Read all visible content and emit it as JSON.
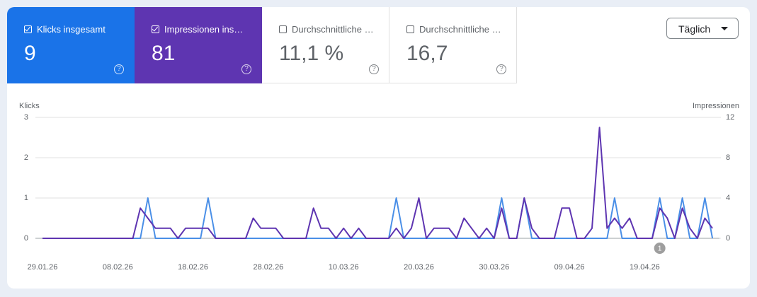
{
  "cards": [
    {
      "label": "Klicks insgesamt",
      "value": "9",
      "checked": true,
      "color": "#1a73e8"
    },
    {
      "label": "Impressionen ins…",
      "value": "81",
      "checked": true,
      "color": "#5e35b1"
    },
    {
      "label": "Durchschnittliche …",
      "value": "11,1 %",
      "checked": false,
      "color": "#ffffff"
    },
    {
      "label": "Durchschnittliche …",
      "value": "16,7",
      "checked": false,
      "color": "#ffffff"
    }
  ],
  "dropdown": "Täglich",
  "chart_data": {
    "type": "line",
    "ylabel": "Klicks",
    "y2label": "Impressionen",
    "categories": [
      "29.01.26",
      null,
      null,
      null,
      null,
      null,
      null,
      null,
      null,
      null,
      "08.02.26",
      null,
      null,
      null,
      null,
      null,
      null,
      null,
      null,
      null,
      "18.02.26",
      null,
      null,
      null,
      null,
      null,
      null,
      null,
      null,
      null,
      "28.02.26",
      null,
      null,
      null,
      null,
      null,
      null,
      null,
      null,
      null,
      "10.03.26",
      null,
      null,
      null,
      null,
      null,
      null,
      null,
      null,
      null,
      "20.03.26",
      null,
      null,
      null,
      null,
      null,
      null,
      null,
      null,
      null,
      "30.03.26",
      null,
      null,
      null,
      null,
      null,
      null,
      null,
      null,
      null,
      "09.04.26",
      null,
      null,
      null,
      null,
      null,
      null,
      null,
      null,
      null,
      "19.04.26",
      null,
      null,
      null,
      null,
      null,
      null,
      null,
      null,
      null
    ],
    "series": [
      {
        "name": "Klicks",
        "color": "#4a8fe7",
        "axis": "y",
        "values": [
          0,
          0,
          0,
          0,
          0,
          0,
          0,
          0,
          0,
          0,
          0,
          0,
          0,
          0,
          1,
          0,
          0,
          0,
          0,
          0,
          0,
          0,
          1,
          0,
          0,
          0,
          0,
          0,
          0,
          0,
          0,
          0,
          0,
          0,
          0,
          0,
          0,
          0,
          0,
          0,
          0,
          0,
          0,
          0,
          0,
          0,
          0,
          1,
          0,
          0,
          0,
          0,
          0,
          0,
          0,
          0,
          0,
          0,
          0,
          0,
          0,
          1,
          0,
          0,
          1,
          0,
          0,
          0,
          0,
          0,
          0,
          0,
          0,
          0,
          0,
          0,
          1,
          0,
          0,
          0,
          0,
          0,
          1,
          0,
          0,
          1,
          0,
          0,
          1,
          0
        ]
      },
      {
        "name": "Impressionen",
        "color": "#5e35b1",
        "axis": "y2",
        "values": [
          0,
          0,
          0,
          0,
          0,
          0,
          0,
          0,
          0,
          0,
          0,
          0,
          0,
          3,
          2,
          1,
          1,
          1,
          0,
          1,
          1,
          1,
          1,
          0,
          0,
          0,
          0,
          0,
          2,
          1,
          1,
          1,
          0,
          0,
          0,
          0,
          3,
          1,
          1,
          0,
          1,
          0,
          1,
          0,
          0,
          0,
          0,
          1,
          0,
          1,
          4,
          0,
          1,
          1,
          1,
          0,
          2,
          1,
          0,
          1,
          0,
          3,
          0,
          0,
          4,
          1,
          0,
          0,
          0,
          3,
          3,
          0,
          0,
          1,
          11,
          1,
          2,
          1,
          2,
          0,
          0,
          0,
          3,
          2,
          0,
          3,
          1,
          0,
          2,
          1
        ]
      }
    ],
    "ylim": [
      0,
      3
    ],
    "yticks": [
      0,
      1,
      2,
      3
    ],
    "y2lim": [
      0,
      12
    ],
    "y2ticks": [
      0,
      4,
      8,
      12
    ],
    "grid": true,
    "annotations": [
      {
        "label": "1",
        "at": 82
      }
    ]
  }
}
